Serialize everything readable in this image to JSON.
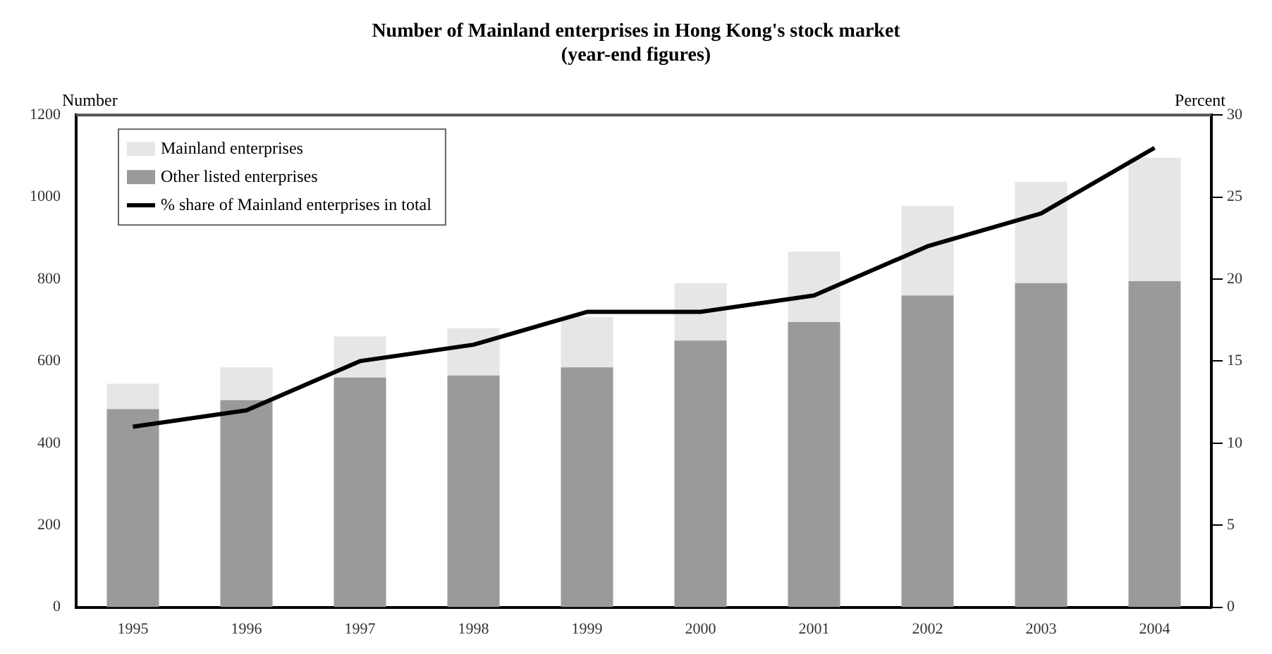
{
  "chart_data": {
    "type": "bar",
    "title": "Number of Mainland enterprises in Hong Kong's stock market",
    "subtitle": "(year-end figures)",
    "ylabel": "Number",
    "y2label": "Percent",
    "categories": [
      "1995",
      "1996",
      "1997",
      "1998",
      "1999",
      "2000",
      "2001",
      "2002",
      "2003",
      "2004"
    ],
    "stacked": true,
    "series": [
      {
        "name": "Other listed enterprises",
        "color": "#9a9a9a",
        "values": [
          483,
          505,
          560,
          565,
          585,
          650,
          695,
          760,
          790,
          795
        ]
      },
      {
        "name": "Mainland enterprises",
        "color": "#e6e6e6",
        "values": [
          62,
          80,
          100,
          115,
          123,
          140,
          172,
          218,
          247,
          301
        ]
      },
      {
        "name": "% share of Mainland enterprises in total",
        "type": "line",
        "axis": "y2",
        "color": "#000000",
        "values": [
          11,
          12,
          15,
          16,
          18,
          18,
          19,
          22,
          24,
          28
        ]
      }
    ],
    "ylim": [
      0,
      1200
    ],
    "yticks": [
      0,
      200,
      400,
      600,
      800,
      1000,
      1200
    ],
    "y2lim": [
      0,
      30
    ],
    "y2ticks": [
      0,
      5,
      10,
      15,
      20,
      25,
      30
    ],
    "grid": false,
    "legend": "top left",
    "marker": "none"
  }
}
